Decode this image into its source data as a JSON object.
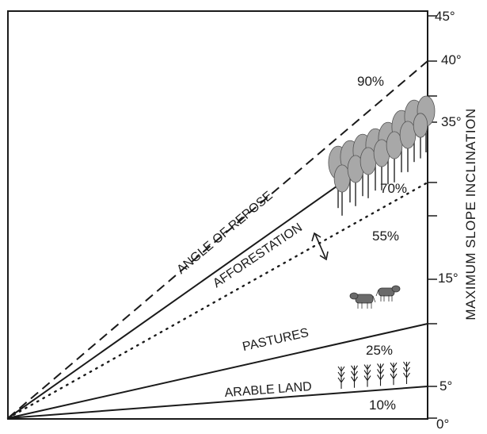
{
  "axis": {
    "title": "MAXIMUM SLOPE INCLINATION",
    "ticks": [
      {
        "value": 0,
        "label": "0°"
      },
      {
        "value": 5,
        "label": "5°"
      },
      {
        "value": 15,
        "label": "15°"
      },
      {
        "value": 35,
        "label": "35°"
      },
      {
        "value": 40,
        "label": "40°"
      },
      {
        "value": 45,
        "label": "45°"
      }
    ]
  },
  "lines": {
    "angle_of_repose": "ANGLE OF REPOSE",
    "afforestation": "AFFORESTATION",
    "pastures": "PASTURES",
    "arable_land": "ARABLE LAND"
  },
  "percentages": {
    "p90": "90%",
    "p70": "70%",
    "p55": "55%",
    "p25": "25%",
    "p10": "10%"
  },
  "icons": [
    "tree-cluster-icon",
    "cow-icon",
    "crop-plants-icon",
    "double-arrow-icon"
  ]
}
